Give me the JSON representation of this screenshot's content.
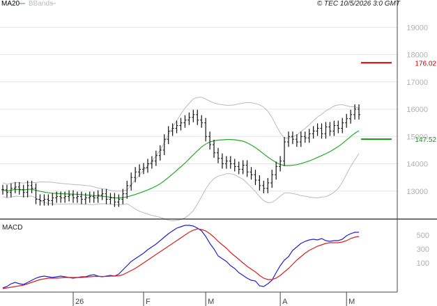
{
  "header": {
    "legend_ma": "MA20",
    "legend_bbands": "BBands",
    "copyright": "© TEC 10/5/2026 3:0 GMT"
  },
  "colors": {
    "ma": "#22aa22",
    "bbands": "#bbbbbb",
    "bars": "#111111",
    "grid": "#e6e6e6",
    "macd_line": "#1f1fd6",
    "signal_line": "#d61f1f",
    "resistance": "#cc0000",
    "support": "#119911"
  },
  "chart_data": [
    {
      "type": "ohlc",
      "panel": "price",
      "y_ticks": [
        "19000",
        "18000",
        "17000",
        "16000",
        "15000",
        "14000",
        "13000"
      ],
      "y_tick_values": [
        19000,
        18000,
        17000,
        16000,
        15000,
        14000,
        13000
      ],
      "ylim": [
        12000,
        20000
      ],
      "x_ticks": [
        "26",
        "F",
        "M",
        "A",
        "M"
      ],
      "x_tick_index": [
        17,
        34,
        49,
        67,
        83
      ],
      "levels": [
        {
          "name": "resistance",
          "value": 17700,
          "label": "176.02"
        },
        {
          "name": "support",
          "value": 14900,
          "label": "147.52"
        }
      ],
      "close": [
        13050,
        12950,
        13100,
        13150,
        13050,
        12950,
        13200,
        13100,
        12700,
        12650,
        12700,
        12650,
        12750,
        12800,
        12750,
        12800,
        12850,
        12750,
        12800,
        12700,
        12750,
        12800,
        12750,
        12850,
        12900,
        12700,
        12750,
        12600,
        12700,
        12900,
        13200,
        13500,
        13700,
        13800,
        13850,
        14000,
        14100,
        14300,
        14500,
        14900,
        15200,
        15300,
        15400,
        15500,
        15600,
        15700,
        15800,
        15600,
        15500,
        15000,
        14700,
        14400,
        14200,
        14000,
        14100,
        14000,
        13900,
        13800,
        13950,
        13700,
        13600,
        13400,
        13200,
        13100,
        13300,
        13600,
        13900,
        14100,
        14800,
        15000,
        14900,
        14800,
        15000,
        14950,
        15100,
        15200,
        15300,
        15100,
        15350,
        15200,
        15400,
        15300,
        15500,
        15650,
        15800,
        16000,
        15800
      ]
    },
    {
      "type": "line",
      "panel": "macd",
      "title": "MACD",
      "y_ticks": [
        "500",
        "300",
        "100"
      ],
      "y_tick_values": [
        500,
        300,
        100
      ],
      "ylim": [
        -300,
        700
      ],
      "series": [
        {
          "values": [
            -260,
            -240,
            -200,
            -180,
            -200,
            -210,
            -180,
            -150,
            -120,
            -100,
            -90,
            -100,
            -110,
            -100,
            -90,
            -100,
            -110,
            -120,
            -110,
            -100,
            -100,
            -80,
            -70,
            -90,
            -100,
            -90,
            -80,
            -90,
            -60,
            0,
            60,
            120,
            160,
            200,
            240,
            290,
            330,
            370,
            420,
            470,
            520,
            560,
            600,
            620,
            640,
            640,
            630,
            600,
            560,
            480,
            380,
            300,
            200,
            160,
            120,
            60,
            20,
            -40,
            -80,
            -120,
            -150,
            -160,
            -230,
            -240,
            -200,
            -150,
            -40,
            60,
            140,
            190,
            280,
            330,
            380,
            410,
            430,
            440,
            430,
            450,
            420,
            410,
            420,
            420,
            440,
            490,
            520,
            540,
            540
          ]
        },
        {
          "values": [
            -270,
            -260,
            -250,
            -240,
            -230,
            -220,
            -200,
            -180,
            -160,
            -140,
            -130,
            -120,
            -120,
            -120,
            -115,
            -110,
            -110,
            -110,
            -110,
            -110,
            -105,
            -100,
            -95,
            -95,
            -95,
            -95,
            -90,
            -90,
            -85,
            -70,
            -40,
            -10,
            20,
            60,
            100,
            140,
            180,
            220,
            260,
            300,
            340,
            380,
            420,
            460,
            500,
            540,
            570,
            590,
            580,
            560,
            520,
            470,
            410,
            360,
            310,
            250,
            200,
            150,
            100,
            50,
            10,
            -30,
            -80,
            -120,
            -140,
            -140,
            -120,
            -80,
            -30,
            20,
            80,
            140,
            190,
            240,
            280,
            310,
            340,
            360,
            380,
            390,
            390,
            390,
            400,
            420,
            450,
            470,
            480
          ]
        }
      ]
    }
  ]
}
